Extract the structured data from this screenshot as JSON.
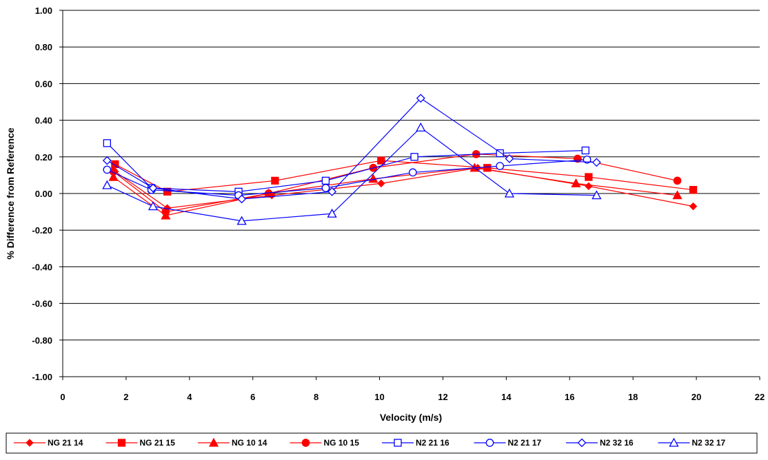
{
  "chart_data": {
    "type": "line",
    "xlabel": "Velocity (m/s)",
    "ylabel": "% Difference from Reference",
    "xlim": [
      0,
      22
    ],
    "ylim": [
      -1.0,
      1.0
    ],
    "x_ticks": [
      0,
      2,
      4,
      6,
      8,
      10,
      12,
      14,
      16,
      18,
      20,
      22
    ],
    "y_ticks": [
      -1.0,
      -0.8,
      -0.6,
      -0.4,
      -0.2,
      0.0,
      0.2,
      0.4,
      0.6,
      0.8,
      1.0
    ],
    "x_tick_labels": [
      "0",
      "2",
      "4",
      "6",
      "8",
      "10",
      "12",
      "14",
      "16",
      "18",
      "20",
      "22"
    ],
    "y_tick_labels": [
      "-1.00",
      "-0.80",
      "-0.60",
      "-0.40",
      "-0.20",
      "0.00",
      "0.20",
      "0.40",
      "0.60",
      "0.80",
      "1.00"
    ],
    "grid": "horizontal",
    "legend_position": "bottom",
    "series": [
      {
        "name": "NG 21 14",
        "color": "#ff0000",
        "marker": "diamond",
        "filled": true,
        "x": [
          1.65,
          3.3,
          6.6,
          10.05,
          13.1,
          16.6,
          19.9
        ],
        "y": [
          0.12,
          -0.08,
          -0.01,
          0.055,
          0.14,
          0.04,
          -0.07
        ]
      },
      {
        "name": "NG 21 15",
        "color": "#ff0000",
        "marker": "square",
        "filled": true,
        "x": [
          1.65,
          3.3,
          6.7,
          10.05,
          13.4,
          16.6,
          19.9
        ],
        "y": [
          0.16,
          0.01,
          0.07,
          0.18,
          0.14,
          0.09,
          0.02
        ]
      },
      {
        "name": "NG 10 14",
        "color": "#ff0000",
        "marker": "triangle",
        "filled": true,
        "x": [
          1.6,
          3.25,
          6.5,
          9.8,
          13.0,
          16.2,
          19.4
        ],
        "y": [
          0.09,
          -0.12,
          0.0,
          0.08,
          0.14,
          0.055,
          -0.01
        ]
      },
      {
        "name": "NG 10 15",
        "color": "#ff0000",
        "marker": "circle",
        "filled": true,
        "x": [
          1.6,
          3.25,
          6.5,
          9.8,
          13.05,
          16.25,
          19.4
        ],
        "y": [
          0.12,
          -0.1,
          0.0,
          0.14,
          0.215,
          0.19,
          0.07
        ]
      },
      {
        "name": "N2 21 16",
        "color": "#0000ff",
        "marker": "square",
        "filled": false,
        "x": [
          1.4,
          2.8,
          5.55,
          8.3,
          11.1,
          13.8,
          16.5
        ],
        "y": [
          0.275,
          0.03,
          0.01,
          0.07,
          0.2,
          0.22,
          0.235
        ]
      },
      {
        "name": "N2 21 17",
        "color": "#0000ff",
        "marker": "circle",
        "filled": false,
        "x": [
          1.4,
          2.8,
          5.55,
          8.3,
          11.05,
          13.8,
          16.55
        ],
        "y": [
          0.13,
          0.02,
          -0.01,
          0.03,
          0.115,
          0.15,
          0.185
        ]
      },
      {
        "name": "N2 32 16",
        "color": "#0000ff",
        "marker": "diamond",
        "filled": false,
        "x": [
          1.4,
          2.85,
          5.65,
          8.5,
          11.3,
          14.1,
          16.85
        ],
        "y": [
          0.18,
          0.03,
          -0.03,
          0.01,
          0.52,
          0.19,
          0.17
        ]
      },
      {
        "name": "N2 32 17",
        "color": "#0000ff",
        "marker": "triangle",
        "filled": false,
        "x": [
          1.4,
          2.85,
          5.65,
          8.5,
          11.3,
          14.1,
          16.85
        ],
        "y": [
          0.045,
          -0.07,
          -0.15,
          -0.11,
          0.36,
          0.0,
          -0.01
        ]
      }
    ]
  }
}
